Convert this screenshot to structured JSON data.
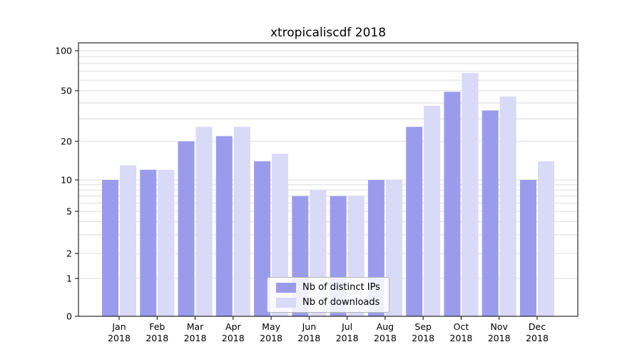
{
  "chart_data": {
    "type": "bar",
    "title": "xtropicaliscdf 2018",
    "xlabel": "",
    "ylabel": "",
    "yscale": "symlog",
    "y_ticks": [
      0,
      1,
      2,
      5,
      10,
      20,
      50,
      100
    ],
    "ylim": [
      0,
      120
    ],
    "grid": true,
    "legend_position": "lower center",
    "categories": [
      "Jan 2018",
      "Feb 2018",
      "Mar 2018",
      "Apr 2018",
      "May 2018",
      "Jun 2018",
      "Jul 2018",
      "Aug 2018",
      "Sep 2018",
      "Oct 2018",
      "Nov 2018",
      "Dec 2018"
    ],
    "series": [
      {
        "name": "Nb of distinct IPs",
        "color": "#9b9bee",
        "values": [
          10,
          12,
          20,
          22,
          14,
          7,
          7,
          10,
          26,
          49,
          35,
          10
        ]
      },
      {
        "name": "Nb of downloads",
        "color": "#d9d9f8",
        "values": [
          13,
          12,
          26,
          26,
          16,
          8,
          7,
          10,
          38,
          68,
          45,
          14
        ]
      }
    ]
  }
}
